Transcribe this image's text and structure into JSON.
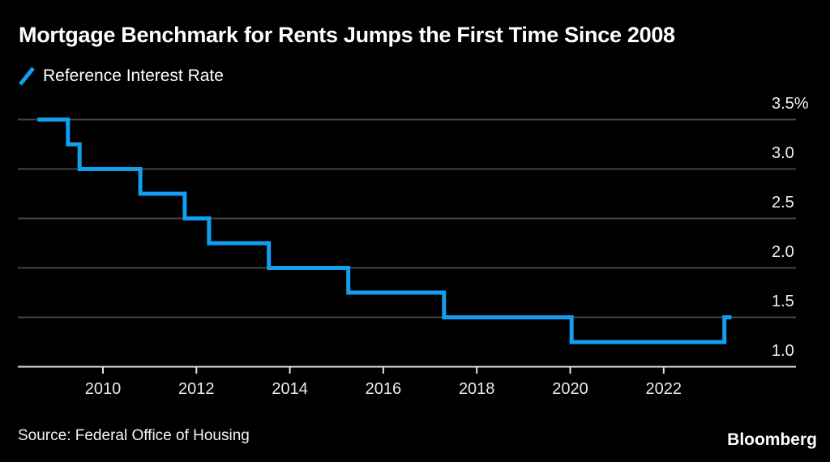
{
  "header": {
    "title": "Mortgage Benchmark for Rents Jumps the First Time Since 2008",
    "legend": {
      "label": "Reference Interest Rate",
      "color": "#129ff0"
    }
  },
  "chart_data": {
    "type": "line",
    "line_style": "step-after",
    "title": "Mortgage Benchmark for Rents Jumps the First Time Since 2008",
    "xlabel": "",
    "ylabel": "Reference interest rate (%)",
    "grid": true,
    "legend_position": "top-left",
    "line_color": "#129ff0",
    "x_range": [
      2008.2,
      2024.8
    ],
    "y_range": [
      1.0,
      3.5
    ],
    "series": [
      {
        "name": "Reference Interest Rate",
        "unit": "%",
        "points": [
          {
            "x": 2008.6,
            "y": 3.5
          },
          {
            "x": 2009.25,
            "y": 3.25
          },
          {
            "x": 2009.5,
            "y": 3.0
          },
          {
            "x": 2010.8,
            "y": 2.75
          },
          {
            "x": 2011.75,
            "y": 2.5
          },
          {
            "x": 2012.27,
            "y": 2.25
          },
          {
            "x": 2013.55,
            "y": 2.0
          },
          {
            "x": 2015.25,
            "y": 1.75
          },
          {
            "x": 2017.3,
            "y": 1.5
          },
          {
            "x": 2020.03,
            "y": 1.25
          },
          {
            "x": 2023.3,
            "y": 1.5
          }
        ],
        "x_end": 2023.45
      }
    ],
    "x_ticks": [
      {
        "year": 2010,
        "label": "2010"
      },
      {
        "year": 2012,
        "label": "2012"
      },
      {
        "year": 2014,
        "label": "2014"
      },
      {
        "year": 2016,
        "label": "2016"
      },
      {
        "year": 2018,
        "label": "2018"
      },
      {
        "year": 2020,
        "label": "2020"
      },
      {
        "year": 2022,
        "label": "2022"
      }
    ],
    "y_ticks": [
      {
        "value": 3.5,
        "label": "3.5%"
      },
      {
        "value": 3.0,
        "label": "3.0"
      },
      {
        "value": 2.5,
        "label": "2.5"
      },
      {
        "value": 2.0,
        "label": "2.0"
      },
      {
        "value": 1.5,
        "label": "1.5"
      },
      {
        "value": 1.0,
        "label": "1.0"
      }
    ]
  },
  "footer": {
    "source": "Source: Federal Office of Housing",
    "brand": "Bloomberg"
  },
  "colors": {
    "background": "#000000",
    "grid": "#454545",
    "axis": "#e2e2e2",
    "text": "#ffffff"
  }
}
